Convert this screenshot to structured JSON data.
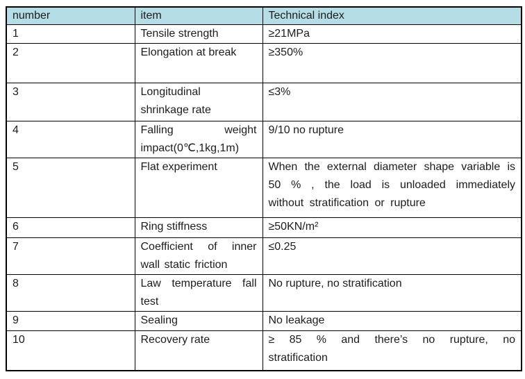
{
  "table": {
    "header_bg": "#b5dde6",
    "border_color": "#000000",
    "columns": [
      {
        "key": "number",
        "label": "number"
      },
      {
        "key": "item",
        "label": "item"
      },
      {
        "key": "tech",
        "label": "Technical index"
      }
    ],
    "rows": [
      {
        "number": "1",
        "item": "Tensile strength",
        "tech": "≥21MPa"
      },
      {
        "number": "2",
        "item": "Elongation at break",
        "tech": "≥350%"
      },
      {
        "number": "3",
        "item": "Longitudinal\nshrinkage rate",
        "tech": "≤3%"
      },
      {
        "number": "4",
        "item": "Falling weight impact(0℃,1kg,1m)",
        "tech": "9/10 no rupture"
      },
      {
        "number": "5",
        "item": "Flat experiment",
        "tech": "When the external diameter shape variable is 50 % , the load is unloaded immediately without stratification or rupture"
      },
      {
        "number": "6",
        "item": "Ring stiffness",
        "tech": "≥50KN/m²"
      },
      {
        "number": "7",
        "item": "Coefficient of inner wall static friction",
        "tech": "≤0.25"
      },
      {
        "number": "8",
        "item": "Law temperature fall test",
        "tech": "No rupture, no stratification"
      },
      {
        "number": "9",
        "item": "Sealing",
        "tech": "No leakage"
      },
      {
        "number": "10",
        "item": "Recovery rate",
        "tech": "≥ 85 % and there’s no rupture, no stratification"
      }
    ]
  }
}
